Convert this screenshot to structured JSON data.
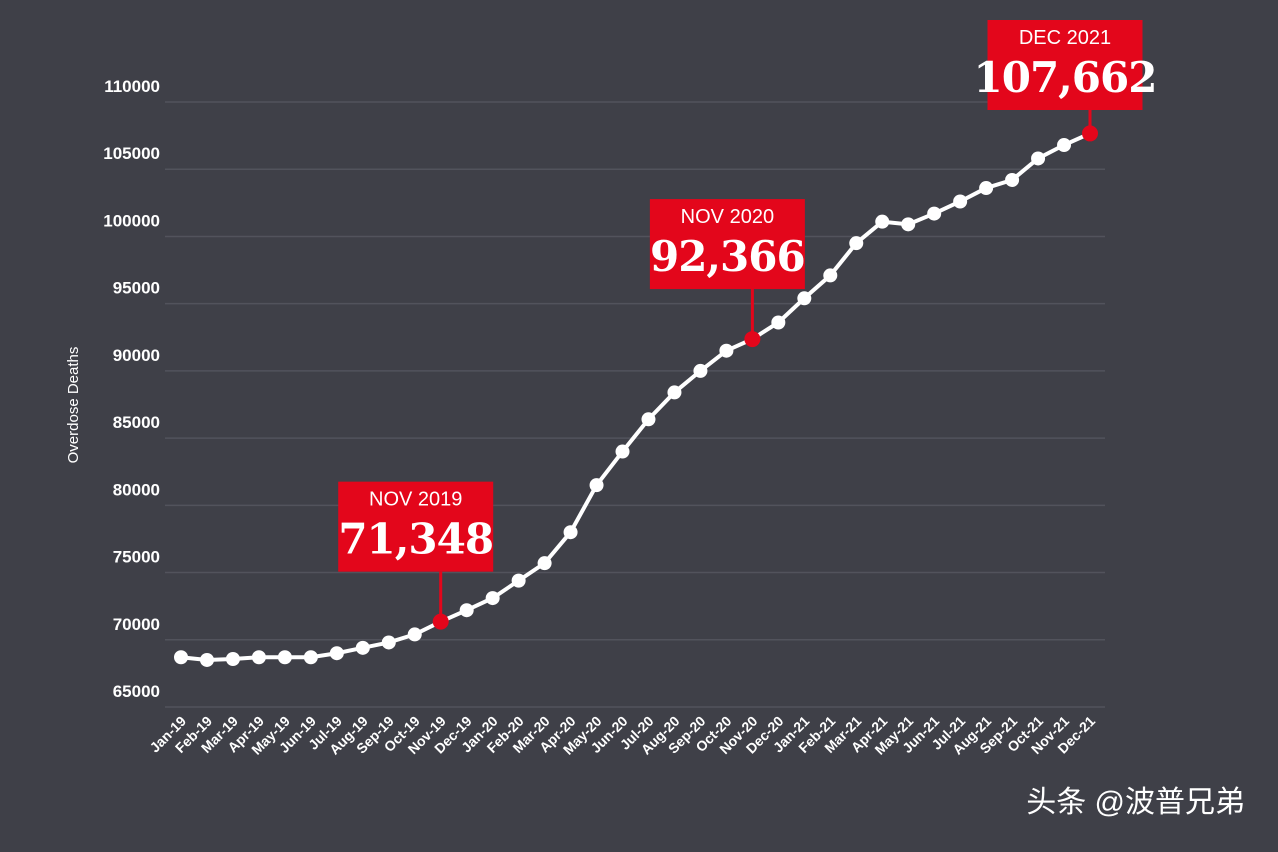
{
  "chart_data": {
    "type": "line",
    "y_axis_label": "Overdose Deaths",
    "categories": [
      "Jan-19",
      "Feb-19",
      "Mar-19",
      "Apr-19",
      "May-19",
      "Jun-19",
      "Jul-19",
      "Aug-19",
      "Sep-19",
      "Oct-19",
      "Nov-19",
      "Dec-19",
      "Jan-20",
      "Feb-20",
      "Mar-20",
      "Apr-20",
      "May-20",
      "Jun-20",
      "Jul-20",
      "Aug-20",
      "Sep-20",
      "Oct-20",
      "Nov-20",
      "Dec-20",
      "Jan-21",
      "Feb-21",
      "Mar-21",
      "Apr-21",
      "May-21",
      "Jun-21",
      "Jul-21",
      "Aug-21",
      "Sep-21",
      "Oct-21",
      "Nov-21",
      "Dec-21"
    ],
    "series": [
      {
        "name": "Overdose Deaths",
        "color": "#ffffff",
        "values": [
          68700,
          68500,
          68570,
          68700,
          68700,
          68700,
          69000,
          69400,
          69800,
          70400,
          71348,
          72200,
          73100,
          74400,
          75700,
          78000,
          81500,
          84000,
          86400,
          88400,
          90000,
          91500,
          92366,
          93600,
          95400,
          97100,
          99500,
          101100,
          100900,
          101700,
          102600,
          103600,
          104200,
          105800,
          106800,
          107662
        ],
        "value_labels": [
          null,
          null,
          null,
          null,
          null,
          null,
          null,
          null,
          null,
          null,
          "71,348",
          null,
          null,
          null,
          null,
          null,
          null,
          null,
          null,
          null,
          null,
          null,
          "92,366",
          null,
          null,
          null,
          null,
          null,
          null,
          null,
          null,
          null,
          null,
          null,
          null,
          "107,662"
        ],
        "callout_titles": [
          null,
          null,
          null,
          null,
          null,
          null,
          null,
          null,
          null,
          null,
          "NOV 2019",
          null,
          null,
          null,
          null,
          null,
          null,
          null,
          null,
          null,
          null,
          null,
          "NOV 2020",
          null,
          null,
          null,
          null,
          null,
          null,
          null,
          null,
          null,
          null,
          null,
          null,
          "DEC 2021"
        ]
      }
    ],
    "callout_color": "#e3061b",
    "ylim": [
      65000,
      110000
    ],
    "yticks": [
      65000,
      70000,
      75000,
      80000,
      85000,
      90000,
      95000,
      100000,
      105000,
      110000
    ],
    "grid": true
  },
  "watermark": "头条 @波普兄弟"
}
